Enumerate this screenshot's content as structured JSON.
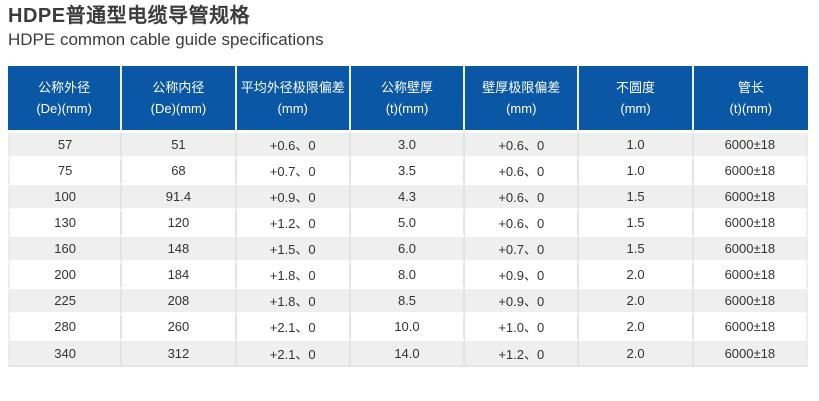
{
  "page": {
    "title_zh": "HDPE普通型电缆导管规格",
    "title_en": "HDPE common cable guide specifications"
  },
  "colors": {
    "header_bg": "#0a58a5",
    "header_text": "#ffffff",
    "row_alt_bg": "#efefef",
    "row_bg": "#ffffff",
    "body_text": "#333333",
    "border": "#e2e2e2",
    "title_text": "#3b3b3b"
  },
  "chart_data": {
    "type": "table",
    "title": "HDPE普通型电缆导管规格",
    "subtitle": "HDPE common cable guide specifications",
    "columns": [
      {
        "label": "公称外径",
        "unit": "(De)(mm)"
      },
      {
        "label": "公称内径",
        "unit": "(De)(mm)"
      },
      {
        "label": "平均外径极限偏差",
        "unit": "(mm)"
      },
      {
        "label": "公称壁厚",
        "unit": "(t)(mm)"
      },
      {
        "label": "壁厚极限偏差",
        "unit": "(mm)"
      },
      {
        "label": "不圆度",
        "unit": "(mm)"
      },
      {
        "label": "管长",
        "unit": "(t)(mm)"
      }
    ],
    "rows": [
      [
        "57",
        "51",
        "+0.6、0",
        "3.0",
        "+0.6、0",
        "1.0",
        "6000±18"
      ],
      [
        "75",
        "68",
        "+0.7、0",
        "3.5",
        "+0.6、0",
        "1.0",
        "6000±18"
      ],
      [
        "100",
        "91.4",
        "+0.9、0",
        "4.3",
        "+0.6、0",
        "1.5",
        "6000±18"
      ],
      [
        "130",
        "120",
        "+1.2、0",
        "5.0",
        "+0.6、0",
        "1.5",
        "6000±18"
      ],
      [
        "160",
        "148",
        "+1.5、0",
        "6.0",
        "+0.7、0",
        "1.5",
        "6000±18"
      ],
      [
        "200",
        "184",
        "+1.8、0",
        "8.0",
        "+0.9、0",
        "2.0",
        "6000±18"
      ],
      [
        "225",
        "208",
        "+1.8、0",
        "8.5",
        "+0.9、0",
        "2.0",
        "6000±18"
      ],
      [
        "280",
        "260",
        "+2.1、0",
        "10.0",
        "+1.0、0",
        "2.0",
        "6000±18"
      ],
      [
        "340",
        "312",
        "+2.1、0",
        "14.0",
        "+1.2、0",
        "2.0",
        "6000±18"
      ]
    ]
  }
}
